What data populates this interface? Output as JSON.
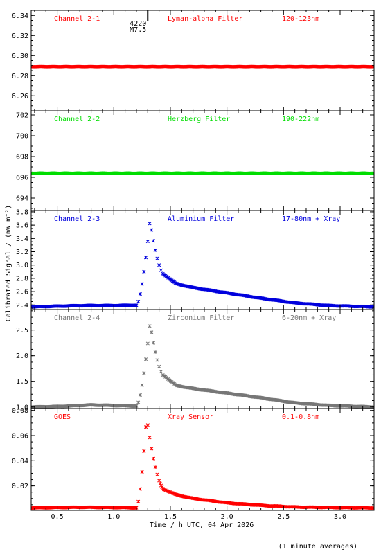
{
  "chart_data": {
    "type": "scatter",
    "xlabel": "Time / h UTC, 04 Apr 2026",
    "ylabel": "Calibrated Signal / (mW m⁻²)",
    "xlim": [
      0.27,
      3.3
    ],
    "x_ticks": [
      "0.5",
      "1.0",
      "1.5",
      "2.0",
      "2.5",
      "3.0"
    ],
    "footnote": "(1 minute averages)",
    "flare_marker": {
      "x": 1.3,
      "number": "4220",
      "class": "M7.5"
    },
    "panels": [
      {
        "channel": "Channel 2-1",
        "filter": "Lyman-alpha Filter",
        "band": "120-123nm",
        "color": "#ff0000",
        "ylim": [
          6.245,
          6.345
        ],
        "y_ticks": [
          "6.26",
          "6.28",
          "6.30",
          "6.32",
          "6.34"
        ],
        "series": {
          "kind": "flat",
          "level": 6.289
        }
      },
      {
        "channel": "Channel 2-2",
        "filter": "Herzberg Filter",
        "band": "190-222nm",
        "color": "#00dd00",
        "ylim": [
          692.8,
          702.4
        ],
        "y_ticks": [
          "694",
          "696",
          "698",
          "700",
          "702"
        ],
        "series": {
          "kind": "flat",
          "level": 696.4
        }
      },
      {
        "channel": "Channel 2-3",
        "filter": "Aluminium Filter",
        "band": "17-80nm + Xray",
        "color": "#0000dd",
        "ylim": [
          2.33,
          3.82
        ],
        "y_ticks": [
          "2.4",
          "2.6",
          "2.8",
          "3.0",
          "3.2",
          "3.4",
          "3.6",
          "3.8"
        ],
        "series": {
          "kind": "flare",
          "base_points": [
            [
              0.27,
              2.37
            ],
            [
              0.6,
              2.385
            ],
            [
              0.75,
              2.39
            ],
            [
              1.0,
              2.39
            ],
            [
              1.18,
              2.395
            ]
          ],
          "peak_x": 1.32,
          "peak": 3.68,
          "start_x": 1.2,
          "decay_points": [
            [
              1.45,
              2.85
            ],
            [
              1.55,
              2.72
            ],
            [
              1.7,
              2.66
            ],
            [
              2.0,
              2.58
            ],
            [
              2.3,
              2.5
            ],
            [
              2.6,
              2.43
            ],
            [
              2.9,
              2.39
            ],
            [
              3.3,
              2.37
            ]
          ]
        }
      },
      {
        "channel": "Channel 2-4",
        "filter": "Zirconium Filter",
        "band": "6-20nm + Xray",
        "color": "#777777",
        "ylim": [
          0.97,
          2.9
        ],
        "y_ticks": [
          "1.0",
          "1.5",
          "2.0",
          "2.5"
        ],
        "series": {
          "kind": "flare",
          "base_points": [
            [
              0.27,
              1.0
            ],
            [
              0.5,
              1.01
            ],
            [
              0.8,
              1.04
            ],
            [
              1.0,
              1.03
            ],
            [
              1.18,
              1.02
            ]
          ],
          "peak_x": 1.32,
          "peak": 2.65,
          "start_x": 1.2,
          "decay_points": [
            [
              1.45,
              1.6
            ],
            [
              1.55,
              1.42
            ],
            [
              1.7,
              1.36
            ],
            [
              2.0,
              1.27
            ],
            [
              2.3,
              1.18
            ],
            [
              2.6,
              1.08
            ],
            [
              2.9,
              1.03
            ],
            [
              3.3,
              1.0
            ]
          ]
        }
      },
      {
        "channel": "GOES",
        "filter": "Xray Sensor",
        "band": "0.1-0.8nm",
        "color": "#ff0000",
        "ylim": [
          0.0005,
          0.0815
        ],
        "y_ticks": [
          "0.02",
          "0.04",
          "0.06",
          "0.08"
        ],
        "series": {
          "kind": "flare",
          "base_points": [
            [
              0.27,
              0.0025
            ],
            [
              0.7,
              0.003
            ],
            [
              1.0,
              0.0028
            ],
            [
              1.18,
              0.0026
            ]
          ],
          "peak_x": 1.29,
          "peak": 0.075,
          "start_x": 1.2,
          "decay_points": [
            [
              1.45,
              0.017
            ],
            [
              1.55,
              0.013
            ],
            [
              1.7,
              0.01
            ],
            [
              2.0,
              0.0065
            ],
            [
              2.3,
              0.0045
            ],
            [
              2.6,
              0.0032
            ],
            [
              3.0,
              0.0027
            ],
            [
              3.3,
              0.0025
            ]
          ]
        }
      }
    ]
  }
}
